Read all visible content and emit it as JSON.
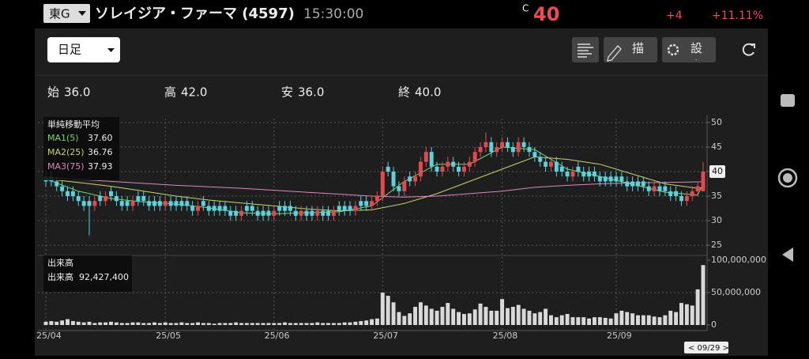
{
  "header": {
    "market": "東G",
    "name": "ソレイジア・ファーマ (4597)",
    "time": "15:30:00",
    "price_prefix": "C",
    "price": "40",
    "change": "+4",
    "change_pct": "+11.11%"
  },
  "toolbar": {
    "period": "日足",
    "draw": "描画",
    "settings": "設定"
  },
  "ohlc_bar": [
    {
      "label": "始",
      "value": "36.0"
    },
    {
      "label": "高",
      "value": "42.0"
    },
    {
      "label": "安",
      "value": "36.0"
    },
    {
      "label": "終",
      "value": "40.0"
    }
  ],
  "date_tag": "< 09/29 >",
  "chart_data": {
    "type": "candlestick",
    "up_color": "#e8474f",
    "down_color": "#5ad3dc",
    "grid": true,
    "categories": [
      "25/04",
      null,
      null,
      null,
      null,
      null,
      null,
      null,
      null,
      null,
      null,
      null,
      null,
      null,
      null,
      null,
      null,
      null,
      null,
      null,
      null,
      null,
      "25/05",
      null,
      null,
      null,
      null,
      null,
      null,
      null,
      null,
      null,
      null,
      null,
      null,
      null,
      null,
      null,
      null,
      null,
      null,
      null,
      "25/06",
      null,
      null,
      null,
      null,
      null,
      null,
      null,
      null,
      null,
      null,
      null,
      null,
      null,
      null,
      null,
      null,
      null,
      null,
      null,
      "25/07",
      null,
      null,
      null,
      null,
      null,
      null,
      null,
      null,
      null,
      null,
      null,
      null,
      null,
      null,
      null,
      null,
      null,
      null,
      null,
      null,
      null,
      "25/08",
      null,
      null,
      null,
      null,
      null,
      null,
      null,
      null,
      null,
      null,
      null,
      null,
      null,
      null,
      null,
      null,
      null,
      null,
      null,
      null,
      "25/09",
      null,
      null,
      null,
      null,
      null,
      null,
      null,
      null,
      null,
      null,
      null,
      null,
      null,
      null,
      null,
      null
    ],
    "open": [
      39,
      39,
      38,
      37,
      36,
      36,
      35,
      34,
      34,
      33,
      35,
      34,
      36,
      35,
      34,
      34,
      33,
      35,
      35,
      34,
      34,
      34,
      33,
      34,
      34,
      34,
      34,
      33,
      32,
      34,
      33,
      33,
      33,
      33,
      32,
      32,
      31,
      33,
      33,
      32,
      32,
      32,
      31,
      33,
      33,
      33,
      32,
      31,
      32,
      32,
      31,
      32,
      32,
      31,
      33,
      33,
      33,
      32,
      34,
      34,
      33,
      34,
      35,
      41,
      40,
      37,
      36,
      39,
      38,
      39,
      42,
      44,
      41,
      40,
      41,
      42,
      41,
      40,
      41,
      42,
      44,
      45,
      46,
      44,
      45,
      46,
      45,
      44,
      46,
      45,
      44,
      43,
      42,
      41,
      42,
      41,
      40,
      39,
      41,
      40,
      40,
      40,
      39,
      39,
      39,
      39,
      39,
      38,
      38,
      38,
      38,
      37,
      36,
      37,
      37,
      36,
      36,
      35,
      34,
      35,
      36,
      36
    ],
    "high": [
      40,
      40,
      39,
      38,
      37,
      37,
      36,
      35,
      35,
      35,
      36,
      36,
      37,
      36,
      35,
      35,
      35,
      36,
      36,
      35,
      35,
      35,
      35,
      35,
      35,
      35,
      35,
      34,
      34,
      35,
      34,
      34,
      34,
      34,
      33,
      33,
      33,
      34,
      34,
      33,
      33,
      33,
      33,
      34,
      34,
      34,
      33,
      33,
      33,
      33,
      33,
      33,
      33,
      33,
      34,
      34,
      34,
      34,
      35,
      35,
      35,
      36,
      41,
      42,
      41,
      38,
      39,
      40,
      40,
      43,
      45,
      45,
      42,
      42,
      43,
      43,
      42,
      42,
      43,
      45,
      46,
      48,
      47,
      46,
      47,
      47,
      46,
      47,
      47,
      46,
      45,
      44,
      43,
      43,
      43,
      42,
      41,
      41,
      42,
      41,
      41,
      41,
      40,
      40,
      40,
      40,
      40,
      39,
      39,
      39,
      39,
      38,
      38,
      38,
      38,
      37,
      37,
      36,
      36,
      37,
      38,
      42
    ],
    "low": [
      37,
      37,
      36,
      35,
      34,
      34,
      33,
      32,
      27,
      32,
      33,
      33,
      34,
      33,
      32,
      32,
      32,
      33,
      33,
      32,
      32,
      32,
      32,
      32,
      32,
      32,
      32,
      31,
      31,
      32,
      31,
      31,
      31,
      31,
      30,
      30,
      30,
      31,
      31,
      30,
      30,
      30,
      30,
      31,
      31,
      31,
      30,
      30,
      30,
      30,
      30,
      30,
      30,
      30,
      31,
      31,
      31,
      31,
      32,
      32,
      32,
      33,
      34,
      39,
      36,
      35,
      35,
      37,
      37,
      38,
      41,
      40,
      39,
      39,
      40,
      40,
      39,
      39,
      40,
      41,
      43,
      44,
      43,
      43,
      44,
      44,
      43,
      43,
      44,
      43,
      42,
      41,
      40,
      40,
      39,
      39,
      38,
      38,
      39,
      38,
      38,
      38,
      37,
      37,
      37,
      37,
      37,
      36,
      36,
      36,
      36,
      35,
      35,
      35,
      35,
      34,
      34,
      33,
      33,
      34,
      35,
      36
    ],
    "close": [
      38,
      38,
      37,
      36,
      35,
      35,
      34,
      33,
      33,
      34,
      34,
      35,
      35,
      34,
      33,
      33,
      34,
      34,
      34,
      33,
      33,
      33,
      34,
      33,
      33,
      33,
      33,
      32,
      33,
      33,
      32,
      32,
      32,
      32,
      31,
      31,
      32,
      32,
      32,
      31,
      31,
      31,
      32,
      32,
      32,
      32,
      31,
      32,
      31,
      31,
      32,
      31,
      31,
      32,
      32,
      32,
      32,
      33,
      33,
      33,
      34,
      35,
      40,
      40,
      37,
      36,
      38,
      38,
      39,
      42,
      44,
      41,
      40,
      41,
      42,
      41,
      40,
      41,
      42,
      44,
      45,
      46,
      44,
      45,
      46,
      45,
      44,
      46,
      45,
      44,
      43,
      42,
      41,
      42,
      40,
      40,
      39,
      40,
      40,
      39,
      39,
      39,
      38,
      38,
      38,
      38,
      38,
      37,
      37,
      37,
      37,
      36,
      37,
      36,
      36,
      35,
      35,
      34,
      35,
      36,
      37,
      40
    ],
    "ylim": [
      23.4,
      50.8
    ],
    "yticks": [
      25,
      30,
      35,
      40,
      45,
      50
    ],
    "overlay_title": "単純移動平均",
    "overlays": [
      {
        "name": "MA1(5)",
        "color": "#74d874",
        "current": "37.60",
        "x": [
          0,
          6,
          12,
          18,
          24,
          30,
          36,
          42,
          48,
          54,
          60,
          66,
          72,
          78,
          84,
          90,
          96,
          102,
          108,
          114,
          120,
          121
        ],
        "values": [
          38.5,
          36,
          34.5,
          33.8,
          33.4,
          32.6,
          31.6,
          31.4,
          31.6,
          31.8,
          33,
          38,
          41.5,
          41.5,
          45,
          44.5,
          40.5,
          39,
          37.4,
          35.8,
          35.2,
          37.6
        ]
      },
      {
        "name": "MA2(25)",
        "color": "#c8d46c",
        "current": "36.76",
        "x": [
          0,
          6,
          12,
          18,
          24,
          30,
          36,
          42,
          48,
          54,
          60,
          66,
          72,
          78,
          84,
          90,
          96,
          102,
          108,
          114,
          120,
          121
        ],
        "values": [
          38.5,
          37.8,
          37,
          36,
          35,
          34.2,
          33.6,
          33,
          32.4,
          32,
          32.2,
          33.5,
          35.5,
          38,
          40.5,
          43,
          42.5,
          41.5,
          39.5,
          37.5,
          36.6,
          36.76
        ]
      },
      {
        "name": "MA3(75)",
        "color": "#d88ab8",
        "current": "37.93",
        "x": [
          0,
          6,
          12,
          18,
          24,
          30,
          36,
          42,
          48,
          54,
          60,
          66,
          72,
          78,
          84,
          90,
          96,
          102,
          108,
          114,
          120,
          121
        ],
        "values": [
          38.8,
          38.4,
          38,
          37.6,
          37.2,
          36.9,
          36.6,
          36.2,
          35.8,
          35.4,
          35,
          34.8,
          35,
          35.5,
          36,
          36.8,
          37.2,
          37.5,
          37.7,
          37.8,
          37.9,
          37.93
        ]
      }
    ],
    "volume": {
      "title": "出来高",
      "current_label": "出来高",
      "current": "92,427,400",
      "color": "#d9d9d9",
      "ylim": [
        0,
        100000000
      ],
      "yticks": [
        0,
        {
          "value": 50000000,
          "label": "50,000,000"
        },
        {
          "value": 100000000,
          "label": "100,000,000"
        }
      ],
      "values": [
        5000000,
        6000000,
        5000000,
        7000000,
        9000000,
        6000000,
        5000000,
        4000000,
        5000000,
        3000000,
        4000000,
        4000000,
        5000000,
        4000000,
        3000000,
        3000000,
        4000000,
        4000000,
        3000000,
        3000000,
        4000000,
        3000000,
        4000000,
        3000000,
        3000000,
        4000000,
        3000000,
        3000000,
        4000000,
        3000000,
        3000000,
        2000000,
        3000000,
        3000000,
        3000000,
        4000000,
        3000000,
        3000000,
        3000000,
        3000000,
        3000000,
        3000000,
        3000000,
        3000000,
        4000000,
        3000000,
        3000000,
        3000000,
        3000000,
        3000000,
        4000000,
        3000000,
        3000000,
        3000000,
        3000000,
        4000000,
        4000000,
        5000000,
        6000000,
        7000000,
        9000000,
        10000000,
        50000000,
        45000000,
        35000000,
        20000000,
        14000000,
        18000000,
        28000000,
        35000000,
        30000000,
        25000000,
        22000000,
        28000000,
        34000000,
        25000000,
        20000000,
        17000000,
        18000000,
        24000000,
        33000000,
        28000000,
        22000000,
        22000000,
        40000000,
        26000000,
        28000000,
        31000000,
        25000000,
        22000000,
        18000000,
        20000000,
        25000000,
        15000000,
        12000000,
        15000000,
        17000000,
        12000000,
        12000000,
        12000000,
        10000000,
        12000000,
        12000000,
        11000000,
        10000000,
        18000000,
        22000000,
        20000000,
        18000000,
        15000000,
        15000000,
        15000000,
        13000000,
        12000000,
        15000000,
        22000000,
        20000000,
        34000000,
        32000000,
        30000000,
        55000000,
        92427400
      ]
    }
  }
}
